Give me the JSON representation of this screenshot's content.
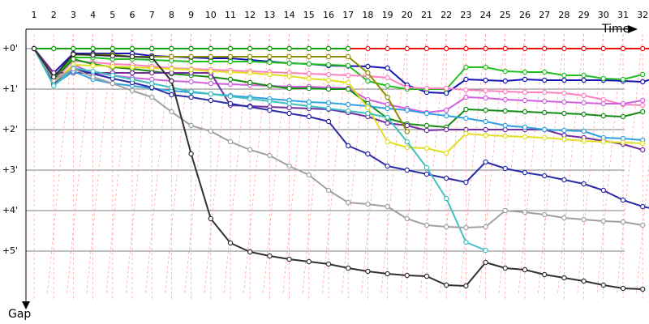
{
  "chart_data": {
    "type": "line",
    "title": "",
    "xlabel": "Time",
    "ylabel": "Gap",
    "x_ticks": [
      "1",
      "2",
      "3",
      "4",
      "5",
      "6",
      "7",
      "8",
      "9",
      "10",
      "11",
      "12",
      "13",
      "14",
      "15",
      "16",
      "17",
      "18",
      "19",
      "20",
      "21",
      "22",
      "23",
      "24",
      "25",
      "26",
      "27",
      "28",
      "29",
      "30",
      "31",
      "32"
    ],
    "y_ticks": [
      "+0'",
      "+1'",
      "+2'",
      "+3'",
      "+4'",
      "+5'"
    ],
    "y_units": "minutes",
    "ylim": [
      0,
      6
    ],
    "xlim": [
      1,
      33
    ],
    "grid": true,
    "series": [
      {
        "color": "#e81010",
        "y": [
          0,
          0,
          0,
          0,
          0,
          0,
          0,
          0,
          0,
          0,
          0,
          0,
          0,
          0,
          0,
          0,
          0,
          0,
          0,
          0,
          0,
          0,
          0,
          0,
          0,
          0,
          0,
          0,
          0,
          0,
          0,
          0,
          0
        ]
      },
      {
        "color": "#10a010",
        "y": [
          0,
          0,
          0,
          0,
          0,
          0,
          0,
          0,
          0,
          0,
          0,
          0,
          0,
          0,
          0,
          0,
          0
        ]
      },
      {
        "color": "#1414b4",
        "y": [
          0,
          0.6,
          0.12,
          0.12,
          0.12,
          0.12,
          0.18,
          0.2,
          0.22,
          0.24,
          0.24,
          0.28,
          0.32,
          0.36,
          0.38,
          0.42,
          0.43,
          0.44,
          0.48,
          0.9,
          1.08,
          1.1,
          0.76,
          0.78,
          0.8,
          0.76,
          0.78,
          0.78,
          0.78,
          0.78,
          0.8,
          0.82,
          0.68
        ]
      },
      {
        "color": "#20c020",
        "y": [
          0,
          0.7,
          0.22,
          0.22,
          0.26,
          0.26,
          0.28,
          0.3,
          0.32,
          0.32,
          0.32,
          0.32,
          0.34,
          0.36,
          0.38,
          0.4,
          0.42,
          0.8,
          0.92,
          1.0,
          1.0,
          1.0,
          0.46,
          0.46,
          0.56,
          0.58,
          0.58,
          0.66,
          0.66,
          0.74,
          0.76,
          0.64
        ]
      },
      {
        "color": "#ff80c0",
        "y": [
          0,
          0.8,
          0.3,
          0.34,
          0.38,
          0.4,
          0.44,
          0.48,
          0.5,
          0.52,
          0.54,
          0.56,
          0.58,
          0.6,
          0.62,
          0.64,
          0.66,
          0.68,
          0.72,
          0.96,
          0.98,
          0.98,
          1.02,
          1.04,
          1.06,
          1.08,
          1.08,
          1.1,
          1.16,
          1.26,
          1.38,
          1.4
        ]
      },
      {
        "color": "#d060e0",
        "y": [
          0,
          0.85,
          0.4,
          0.6,
          0.66,
          0.72,
          0.76,
          0.8,
          0.82,
          0.86,
          0.88,
          0.9,
          0.92,
          0.94,
          0.94,
          0.96,
          0.98,
          1.26,
          1.38,
          1.48,
          1.58,
          1.52,
          1.2,
          1.22,
          1.26,
          1.28,
          1.3,
          1.32,
          1.34,
          1.36,
          1.36,
          1.28
        ]
      },
      {
        "color": "#148c14",
        "y": [
          0,
          0.75,
          0.26,
          0.38,
          0.46,
          0.5,
          0.56,
          0.62,
          0.66,
          0.7,
          0.76,
          0.84,
          0.92,
          0.98,
          0.98,
          1.0,
          1.0,
          1.36,
          1.72,
          1.86,
          1.9,
          1.94,
          1.5,
          1.52,
          1.54,
          1.56,
          1.58,
          1.6,
          1.62,
          1.66,
          1.68,
          1.56
        ]
      },
      {
        "color": "#7030a0",
        "y": [
          0,
          0.6,
          0.6,
          0.6,
          0.6,
          0.6,
          0.6,
          0.6,
          0.6,
          0.6,
          1.4,
          1.42,
          1.44,
          1.46,
          1.48,
          1.5,
          1.58,
          1.68,
          1.84,
          1.9,
          2.02,
          2.0,
          2.0,
          2.0,
          2.0,
          2.0,
          2.0,
          2.14,
          2.2,
          2.28,
          2.36,
          2.5
        ]
      },
      {
        "color": "#2fa0e0",
        "y": [
          0,
          0.9,
          0.56,
          0.76,
          0.86,
          0.92,
          0.98,
          1.04,
          1.08,
          1.12,
          1.16,
          1.2,
          1.24,
          1.28,
          1.32,
          1.34,
          1.38,
          1.42,
          1.48,
          1.52,
          1.6,
          1.66,
          1.72,
          1.8,
          1.9,
          1.94,
          2.0,
          2.02,
          2.04,
          2.2,
          2.22,
          2.26
        ]
      },
      {
        "color": "#e0e020",
        "y": [
          0,
          0.84,
          0.4,
          0.42,
          0.44,
          0.46,
          0.48,
          0.5,
          0.52,
          0.56,
          0.58,
          0.6,
          0.64,
          0.68,
          0.74,
          0.78,
          0.84,
          1.46,
          2.3,
          2.44,
          2.46,
          2.58,
          2.1,
          2.14,
          2.16,
          2.18,
          2.2,
          2.24,
          2.28,
          2.3,
          2.32,
          2.34
        ]
      },
      {
        "color": "#8d8d00",
        "y": [
          0,
          0.7,
          0.15,
          0.15,
          0.15,
          0.2,
          0.2,
          0.2,
          0.2,
          0.2,
          0.2,
          0.2,
          0.2,
          0.2,
          0.2,
          0.2,
          0.2,
          0.6,
          1.2,
          2.05
        ]
      },
      {
        "color": "#2c2ca8",
        "y": [
          0,
          0.88,
          0.5,
          0.62,
          0.74,
          0.84,
          0.96,
          1.14,
          1.2,
          1.28,
          1.36,
          1.44,
          1.52,
          1.6,
          1.68,
          1.8,
          2.4,
          2.6,
          2.9,
          3.0,
          3.1,
          3.2,
          3.3,
          2.8,
          2.96,
          3.06,
          3.14,
          3.24,
          3.34,
          3.5,
          3.74,
          3.9,
          4.0
        ]
      },
      {
        "color": "#40c0c0",
        "y": [
          0,
          0.92,
          0.48,
          0.56,
          0.66,
          0.76,
          0.86,
          0.96,
          1.06,
          1.12,
          1.18,
          1.24,
          1.3,
          1.36,
          1.42,
          1.48,
          1.54,
          1.6,
          1.7,
          2.3,
          2.94,
          3.7,
          4.78,
          4.98
        ]
      },
      {
        "color": "#a0a0a0",
        "y": [
          0,
          0.78,
          0.5,
          0.7,
          0.86,
          1.04,
          1.2,
          1.56,
          1.9,
          2.04,
          2.3,
          2.5,
          2.64,
          2.9,
          3.12,
          3.5,
          3.8,
          3.84,
          3.9,
          4.2,
          4.36,
          4.4,
          4.42,
          4.4,
          4.0,
          4.04,
          4.1,
          4.18,
          4.22,
          4.26,
          4.28,
          4.36
        ]
      },
      {
        "color": "#303030",
        "y": [
          0,
          0.7,
          0.14,
          0.16,
          0.18,
          0.2,
          0.22,
          0.8,
          2.6,
          4.2,
          4.8,
          5.02,
          5.12,
          5.2,
          5.26,
          5.32,
          5.42,
          5.5,
          5.56,
          5.6,
          5.62,
          5.84,
          5.86,
          5.28,
          5.42,
          5.46,
          5.58,
          5.66,
          5.74,
          5.84,
          5.92,
          5.94
        ]
      }
    ]
  }
}
